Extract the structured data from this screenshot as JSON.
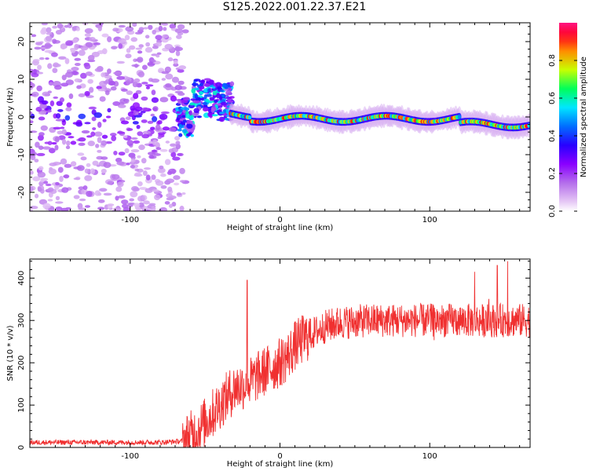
{
  "title": "S125.2022.001.22.37.E21",
  "colors": {
    "snr_line": "#f03030",
    "colormap": [
      "#ffffff",
      "#e6c8f5",
      "#c080ee",
      "#8a00ff",
      "#2a00ff",
      "#0060ff",
      "#00e6ff",
      "#00ff60",
      "#c8ff00",
      "#ff9000",
      "#ff0020",
      "#ff1080"
    ]
  },
  "chart_data": [
    {
      "type": "heatmap",
      "title": "S125.2022.001.22.37.E21",
      "xlabel": "Height of straight line (km)",
      "ylabel": "Frequency (Hz)",
      "xlim": [
        -167,
        167
      ],
      "ylim": [
        -25,
        25
      ],
      "xticks": [
        -100,
        0,
        100
      ],
      "yticks": [
        -20,
        -10,
        0,
        10,
        20
      ],
      "colorbar": {
        "label": "Normalized spectral amplitude",
        "range": [
          0,
          1
        ],
        "ticks": [
          "0.0",
          "0.2",
          "0.4",
          "0.6",
          "0.8"
        ]
      },
      "features": [
        {
          "region": "noise",
          "x_range": [
            -167,
            -65
          ],
          "freq_center": 0,
          "freq_spread": 25,
          "max_amplitude": 0.35
        },
        {
          "region": "transition",
          "x_range": [
            -65,
            -33
          ],
          "freq_center": 4,
          "freq_spread": 6,
          "max_amplitude": 0.55
        },
        {
          "region": "signal",
          "x_range": [
            -33,
            167
          ],
          "freq_center": -1,
          "freq_spread": 2.5,
          "max_amplitude": 0.95
        }
      ]
    },
    {
      "type": "line",
      "xlabel": "Height of straight line (km)",
      "ylabel": "SNR (10 * v/v)",
      "xlim": [
        -167,
        167
      ],
      "ylim": [
        0,
        445
      ],
      "xticks": [
        -100,
        0,
        100
      ],
      "yticks": [
        0,
        100,
        200,
        300,
        400
      ],
      "series": [
        {
          "x": [
            -167,
            -140,
            -110,
            -80,
            -65,
            -55,
            -45,
            -38,
            -30,
            -22,
            -18,
            -10,
            0,
            5,
            10,
            15,
            20,
            30,
            40,
            60,
            80,
            100,
            120,
            140,
            160,
            167
          ],
          "values": [
            12,
            12,
            12,
            12,
            15,
            40,
            80,
            110,
            140,
            150,
            160,
            180,
            200,
            215,
            240,
            255,
            265,
            285,
            295,
            300,
            300,
            300,
            300,
            300,
            300,
            300
          ],
          "peaks": [
            {
              "x": -22,
              "y": 395
            },
            {
              "x": 152,
              "y": 440
            },
            {
              "x": 145,
              "y": 430
            },
            {
              "x": 130,
              "y": 415
            }
          ],
          "noise_amplitude": {
            "low_region": 6,
            "transition_region": 60,
            "high_region": 40
          }
        }
      ]
    }
  ]
}
